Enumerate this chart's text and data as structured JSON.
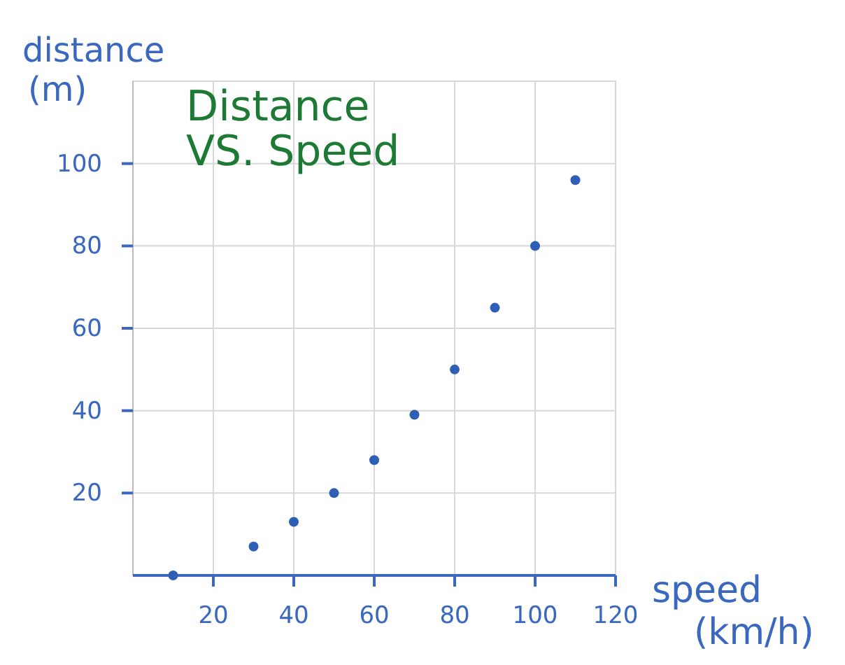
{
  "chart_data": {
    "type": "scatter",
    "title": "Distance VS. Speed",
    "xlabel": "speed (km/h)",
    "ylabel": "distance (m)",
    "x": [
      10,
      30,
      40,
      50,
      60,
      70,
      80,
      90,
      100,
      110
    ],
    "series": [
      {
        "color": "#2d5fb5",
        "values": [
          0,
          7,
          13,
          20,
          28,
          39,
          50,
          65,
          80,
          96
        ]
      }
    ],
    "xlim": [
      0,
      120
    ],
    "ylim": [
      0,
      120
    ],
    "xticks": [
      20,
      40,
      60,
      80,
      100,
      120
    ],
    "yticks": [
      20,
      40,
      60,
      80,
      100
    ],
    "grid": true,
    "marker": "circle"
  }
}
